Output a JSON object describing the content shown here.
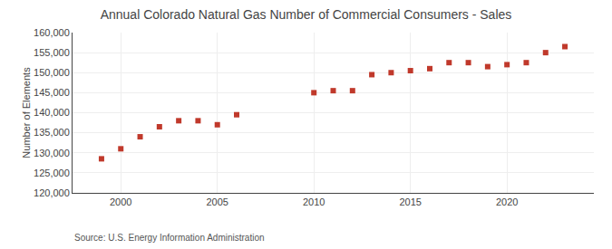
{
  "chart_data": {
    "type": "scatter",
    "title": "Annual Colorado Natural Gas Number of Commercial Consumers - Sales",
    "ylabel": "Number of Elements",
    "source": "Source: U.S. Energy Information Administration",
    "x": [
      1999,
      2000,
      2001,
      2002,
      2003,
      2004,
      2005,
      2006,
      2010,
      2011,
      2012,
      2013,
      2014,
      2015,
      2016,
      2017,
      2018,
      2019,
      2020,
      2021,
      2022,
      2023
    ],
    "values": [
      128500,
      131000,
      134000,
      136500,
      138000,
      138000,
      137000,
      139500,
      145000,
      145500,
      145500,
      149500,
      150000,
      150500,
      151000,
      152500,
      152500,
      151500,
      152000,
      152500,
      155000,
      156500
    ],
    "color": "#c0392b",
    "marker": "square",
    "xlim": [
      1997.5,
      2024.5
    ],
    "ylim": [
      120000,
      160000
    ],
    "xticks": [
      2000,
      2005,
      2010,
      2015,
      2020
    ],
    "yticks": [
      {
        "value": 120000,
        "label": "120,000"
      },
      {
        "value": 125000,
        "label": "125,000"
      },
      {
        "value": 130000,
        "label": "130,000"
      },
      {
        "value": 135000,
        "label": "135,000"
      },
      {
        "value": 140000,
        "label": "140,000"
      },
      {
        "value": 145000,
        "label": "145,000"
      },
      {
        "value": 150000,
        "label": "150,000"
      },
      {
        "value": 155000,
        "label": "155,000"
      },
      {
        "value": 160000,
        "label": "160,000"
      }
    ],
    "grid": true
  }
}
